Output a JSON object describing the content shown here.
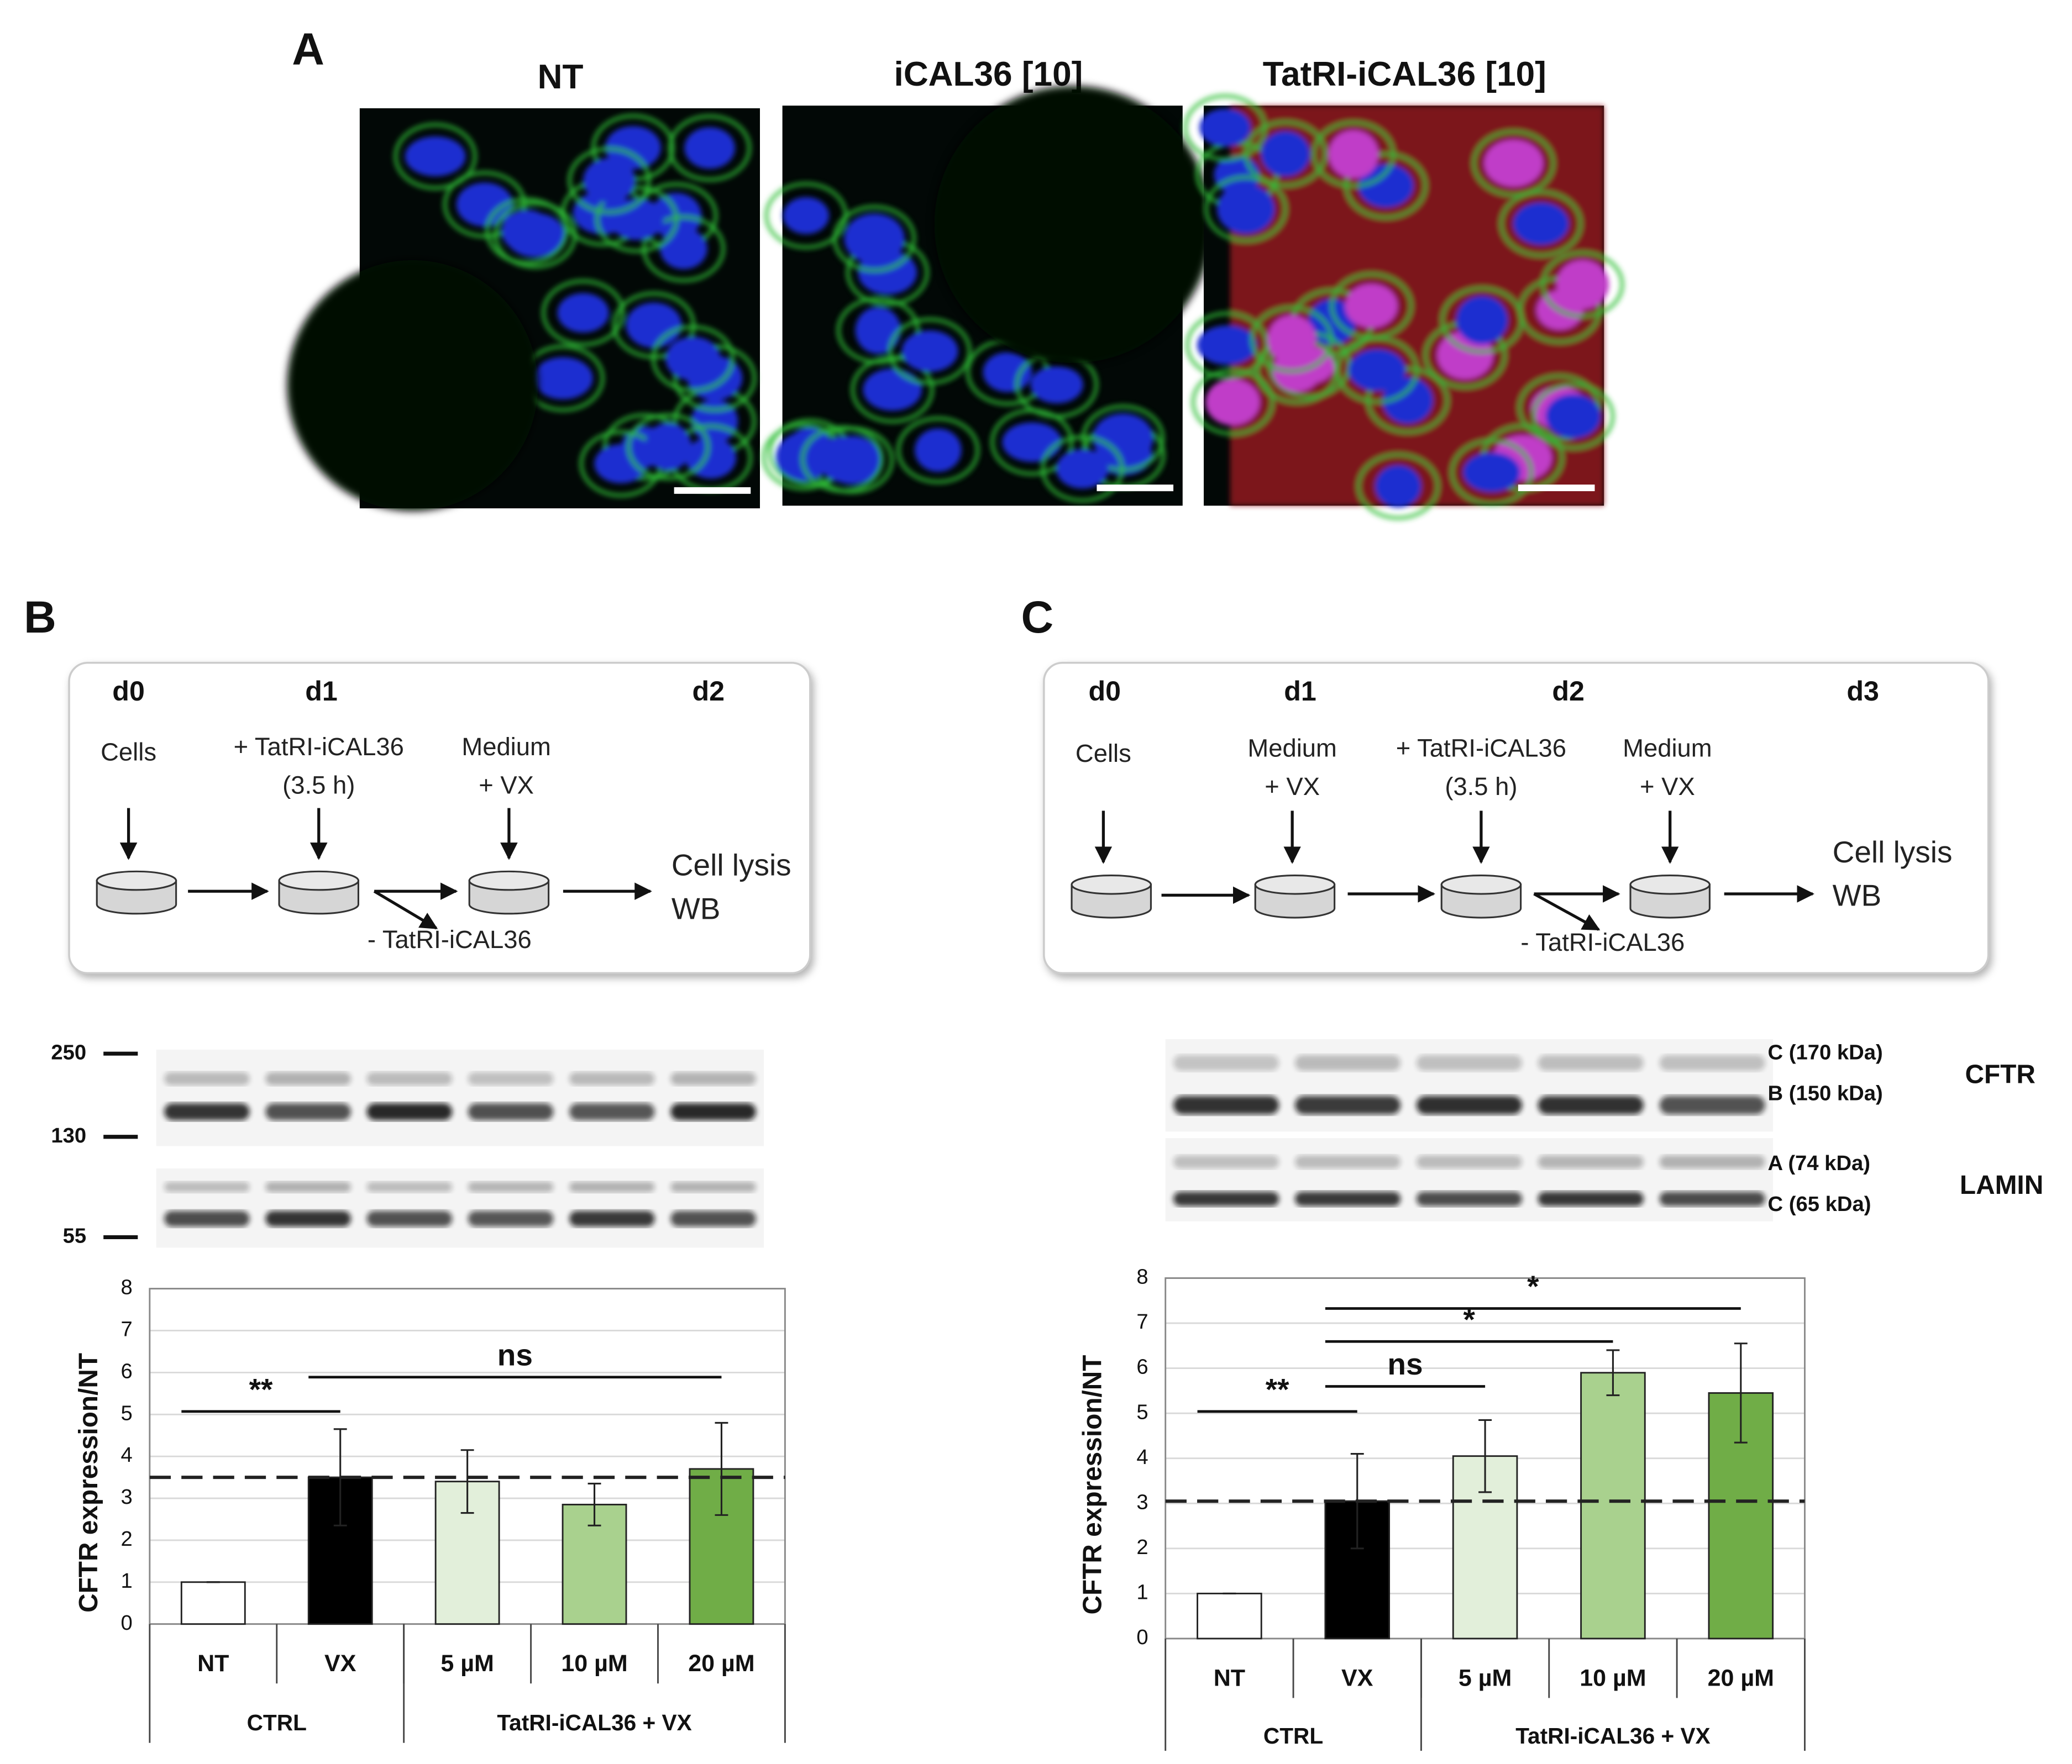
{
  "panel_a": {
    "label": "A",
    "images": [
      {
        "title": "NT"
      },
      {
        "title": "iCAL36 [10]"
      },
      {
        "title": "TatRI-iCAL36 [10]"
      }
    ]
  },
  "panel_b": {
    "label": "B",
    "schema": {
      "days": [
        "d0",
        "d1",
        "d2"
      ],
      "steps": [
        "Cells",
        "+ TatRI-iCAL36",
        "(3.5 h)",
        "Medium",
        "+ VX",
        "Cell lysis",
        "WB",
        "- TatRI-iCAL36"
      ]
    },
    "blot": {
      "markers": [
        250,
        130,
        55
      ]
    }
  },
  "panel_c": {
    "label": "C",
    "schema": {
      "days": [
        "d0",
        "d1",
        "d2",
        "d3"
      ],
      "steps": [
        "Cells",
        "Medium",
        "+ VX",
        "+ TatRI-iCAL36",
        "(3.5 h)",
        "Medium",
        "+ VX",
        "Cell lysis",
        "WB",
        "- TatRI-iCAL36"
      ]
    },
    "blot": {
      "bands": [
        "C (170 kDa)",
        "B (150 kDa)",
        "A (74 kDa)",
        "C (65 kDa)"
      ],
      "proteins": [
        "CFTR",
        "LAMIN"
      ]
    }
  },
  "chart_data": [
    {
      "type": "bar",
      "y_label": "CFTR expression/NT",
      "categories": [
        "NT",
        "VX",
        "5 µM",
        "10 µM",
        "20 µM"
      ],
      "values": [
        1,
        3.5,
        3.4,
        2.85,
        3.7
      ],
      "errors": [
        0,
        1.15,
        0.75,
        0.5,
        1.1
      ],
      "colors": [
        "#ffffff",
        "#000000",
        "#e2efda",
        "#a9d18e",
        "#70ad47"
      ],
      "ylim": [
        0,
        8
      ],
      "yticks": [
        0,
        1,
        2,
        3,
        4,
        5,
        6,
        7,
        8
      ],
      "grid": true,
      "reference_line": 3.5,
      "groups": [
        {
          "name": "CTRL",
          "categories": [
            "NT",
            "VX"
          ]
        },
        {
          "name": "TatRI-iCAL36 + VX",
          "categories": [
            "5 µM",
            "10 µM",
            "20 µM"
          ]
        }
      ],
      "annotations": [
        {
          "text": "**",
          "from": "NT",
          "to": "VX"
        },
        {
          "text": "ns",
          "from": "VX",
          "to": "20 µM"
        }
      ]
    },
    {
      "type": "bar",
      "y_label": "CFTR expression/NT",
      "categories": [
        "NT",
        "VX",
        "5 µM",
        "10 µM",
        "20 µM"
      ],
      "values": [
        1,
        3.05,
        4.05,
        5.9,
        5.45
      ],
      "errors": [
        0,
        1.05,
        0.8,
        0.5,
        1.1
      ],
      "colors": [
        "#ffffff",
        "#000000",
        "#e2efda",
        "#a9d18e",
        "#70ad47"
      ],
      "ylim": [
        0,
        8
      ],
      "yticks": [
        0,
        1,
        2,
        3,
        4,
        5,
        6,
        7,
        8
      ],
      "grid": true,
      "reference_line": 3.05,
      "groups": [
        {
          "name": "CTRL",
          "categories": [
            "NT",
            "VX"
          ]
        },
        {
          "name": "TatRI-iCAL36 + VX",
          "categories": [
            "5 µM",
            "10 µM",
            "20 µM"
          ]
        }
      ],
      "annotations": [
        {
          "text": "**",
          "from": "NT",
          "to": "VX"
        },
        {
          "text": "ns",
          "from": "VX",
          "to": "5 µM"
        },
        {
          "text": "*",
          "from": "VX",
          "to": "10 µM"
        },
        {
          "text": "*",
          "from": "VX",
          "to": "20 µM"
        }
      ]
    }
  ]
}
